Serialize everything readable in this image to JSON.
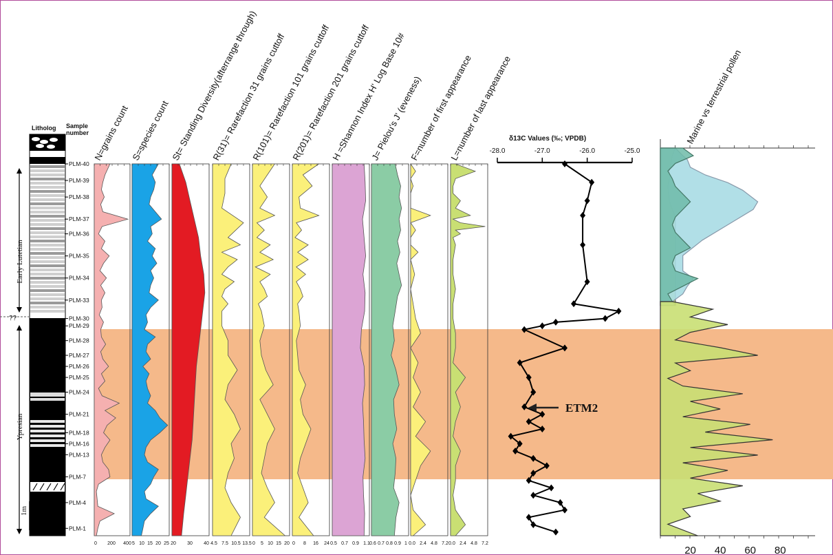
{
  "header": {
    "lithology": "Litholog",
    "sample": "Sample",
    "number": "number"
  },
  "samples": [
    "PLM-40",
    "PLM-39",
    "PLM-38",
    "PLM-37",
    "PLM-36",
    "PLM-35",
    "PLM-34",
    "PLM-33",
    "PLM-30",
    "PLM-29",
    "PLM-28",
    "PLM-27",
    "PLM-26",
    "PLM-25",
    "PLM-24",
    "PLM-21",
    "PLM-18",
    "PLM-16",
    "PLM-13",
    "PLM-7",
    "PLM-4",
    "PLM-1"
  ],
  "stages": {
    "upper": "Early Lutetian",
    "lower": "Ypresian",
    "boundary": "??"
  },
  "scale_label": "1m",
  "etm_label": "ETM2",
  "colors": {
    "band": "#f5b98a",
    "pink": "#f5b0b0",
    "blue": "#1aa3e6",
    "red": "#e31b23",
    "yellow": "#fbf07a",
    "violet": "#dca4d4",
    "green": "#8bcca5",
    "lime": "#c9df73",
    "teal": "#6fbba8",
    "lightblue": "#a9dbe4"
  },
  "chart_data": [
    {
      "type": "area",
      "title": "N=grains count",
      "ticks": [
        "0",
        "200",
        "400"
      ],
      "depth": [
        0,
        3,
        5,
        7,
        9,
        11,
        13,
        15,
        17,
        19,
        21,
        23,
        25,
        27,
        29,
        31,
        33,
        35,
        37,
        39,
        41,
        43,
        45,
        47,
        49,
        51,
        53,
        55,
        57,
        59,
        61,
        63,
        65,
        67,
        69,
        71,
        73,
        75,
        77,
        79,
        81,
        83,
        85,
        87,
        89,
        91,
        93,
        95,
        97,
        99,
        101
      ],
      "values": [
        220,
        150,
        120,
        100,
        140,
        90,
        120,
        470,
        110,
        60,
        150,
        100,
        210,
        130,
        80,
        170,
        90,
        150,
        100,
        110,
        70,
        130,
        90,
        100,
        160,
        90,
        120,
        200,
        100,
        150,
        60,
        110,
        350,
        150,
        300,
        180,
        130,
        220,
        150,
        100,
        120,
        200,
        220,
        60,
        30,
        40,
        50,
        280,
        80,
        50,
        30
      ]
    },
    {
      "type": "area",
      "title": "S=species count",
      "ticks": [
        "5",
        "10",
        "15",
        "20",
        "25"
      ],
      "depth": [
        0,
        3,
        5,
        7,
        9,
        11,
        13,
        15,
        17,
        19,
        21,
        23,
        25,
        27,
        29,
        31,
        33,
        35,
        37,
        39,
        41,
        43,
        45,
        47,
        49,
        51,
        53,
        55,
        57,
        59,
        61,
        63,
        65,
        67,
        69,
        71,
        73,
        75,
        77,
        79,
        81,
        83,
        85,
        87,
        89,
        91,
        93,
        95,
        97,
        99,
        101
      ],
      "values": [
        20,
        16,
        18,
        17,
        15,
        14,
        18,
        22,
        15,
        16,
        13,
        18,
        16,
        19,
        15,
        17,
        15,
        14,
        20,
        15,
        12,
        13,
        11,
        18,
        13,
        12,
        15,
        10,
        14,
        12,
        13,
        15,
        13,
        18,
        21,
        26,
        21,
        15,
        12,
        11,
        13,
        20,
        17,
        15,
        11,
        12,
        20,
        15,
        11,
        10,
        9
      ]
    },
    {
      "type": "area",
      "title": "St= Standing Diversity(afterrange through)",
      "ticks": [
        "20",
        "30",
        "40"
      ],
      "depth": [
        0,
        5,
        10,
        15,
        20,
        25,
        30,
        35,
        40,
        45,
        50,
        55,
        60,
        65,
        70,
        75,
        80,
        85,
        90,
        95,
        101
      ],
      "values": [
        22,
        28,
        32,
        36,
        40,
        42,
        45,
        46,
        44,
        42,
        40,
        38,
        37,
        36,
        35,
        34,
        32,
        30,
        28,
        26,
        24
      ]
    },
    {
      "type": "area",
      "title": "R(31)= Rarefaction 31 grains cuttoff",
      "ticks": [
        "4.5",
        "7.5",
        "10.5",
        "13.5"
      ],
      "depth": [
        0,
        4,
        8,
        12,
        16,
        20,
        22,
        24,
        26,
        28,
        30,
        32,
        34,
        36,
        38,
        40,
        44,
        48,
        52,
        56,
        60,
        64,
        68,
        72,
        76,
        80,
        84,
        88,
        92,
        96,
        101
      ],
      "values": [
        9,
        7,
        7,
        6,
        13,
        8,
        12,
        6,
        11,
        8,
        6,
        10,
        7,
        6,
        8,
        6,
        6,
        8,
        8,
        11,
        8,
        7,
        10,
        12,
        9,
        10,
        8,
        7,
        9,
        12,
        9
      ]
    },
    {
      "type": "area",
      "title": "R(101)= Rarefaction 101 grains cuttoff",
      "ticks": [
        "0",
        "5",
        "10",
        "15",
        "20"
      ],
      "depth": [
        0,
        3,
        6,
        9,
        12,
        14,
        16,
        18,
        20,
        22,
        24,
        26,
        28,
        30,
        32,
        34,
        36,
        38,
        40,
        44,
        48,
        52,
        56,
        60,
        64,
        68,
        72,
        76,
        80,
        84,
        88,
        92,
        96,
        101
      ],
      "values": [
        15,
        10,
        5,
        10,
        5,
        15,
        3,
        8,
        3,
        12,
        5,
        14,
        2,
        12,
        5,
        8,
        10,
        4,
        6,
        8,
        5,
        6,
        9,
        14,
        5,
        10,
        15,
        10,
        8,
        6,
        10,
        15,
        8,
        22
      ]
    },
    {
      "type": "area",
      "title": "R(201)= Rarefaction 201 grains cuttoff",
      "ticks": [
        "0",
        "8",
        "16",
        "24"
      ],
      "depth": [
        0,
        3,
        6,
        9,
        12,
        14,
        16,
        18,
        20,
        22,
        24,
        26,
        28,
        30,
        32,
        34,
        36,
        38,
        40,
        44,
        48,
        52,
        56,
        60,
        64,
        68,
        72,
        76,
        80,
        84,
        88,
        92,
        96,
        101
      ],
      "values": [
        20,
        8,
        15,
        5,
        6,
        20,
        3,
        7,
        2,
        12,
        4,
        12,
        3,
        10,
        3,
        6,
        8,
        4,
        5,
        6,
        3,
        4,
        5,
        10,
        6,
        8,
        14,
        10,
        6,
        4,
        8,
        12,
        5,
        16
      ]
    },
    {
      "type": "area",
      "title": "H =Shannon Index H' Log Base 10#",
      "ticks": [
        "0.5",
        "0.7",
        "0.9",
        "1.1"
      ],
      "depth": [
        0,
        5,
        10,
        15,
        20,
        25,
        30,
        35,
        40,
        45,
        50,
        55,
        60,
        65,
        70,
        75,
        80,
        85,
        90,
        95,
        101
      ],
      "values": [
        1.05,
        1.07,
        1.08,
        1.02,
        1.05,
        1.08,
        1.03,
        1.07,
        1.06,
        1.0,
        0.98,
        1.05,
        1.06,
        1.02,
        1.04,
        1.05,
        1.07,
        1.03,
        1.04,
        1.06,
        1.05
      ]
    },
    {
      "type": "area",
      "title": "J= Pielou's J' (eveness)",
      "ticks": [
        "0.6",
        "0.7",
        "0.8",
        "0.9",
        "1"
      ],
      "depth": [
        0,
        3,
        6,
        9,
        12,
        15,
        18,
        21,
        24,
        27,
        30,
        33,
        36,
        40,
        44,
        48,
        52,
        56,
        60,
        64,
        68,
        72,
        76,
        80,
        84,
        88,
        92,
        96,
        101
      ],
      "values": [
        0.85,
        0.88,
        0.92,
        0.9,
        0.93,
        0.9,
        0.92,
        0.88,
        0.91,
        0.87,
        0.9,
        0.93,
        0.88,
        0.85,
        0.82,
        0.84,
        0.8,
        0.86,
        0.9,
        0.83,
        0.84,
        0.87,
        0.82,
        0.86,
        0.85,
        0.83,
        0.9,
        0.86,
        0.84
      ]
    },
    {
      "type": "area",
      "title": "F=number of first appearance",
      "ticks": [
        "0.0",
        "2.4",
        "4.8",
        "7.2"
      ],
      "depth": [
        0,
        2,
        4,
        6,
        8,
        10,
        12,
        14,
        16,
        18,
        20,
        22,
        24,
        26,
        30,
        34,
        38,
        42,
        46,
        50,
        54,
        58,
        62,
        66,
        70,
        74,
        78,
        82,
        86,
        90,
        94,
        98,
        101
      ],
      "values": [
        0,
        1,
        0,
        0.5,
        0,
        0,
        0,
        4,
        0,
        1,
        0,
        0,
        1.5,
        0,
        0.8,
        0,
        0.5,
        1,
        2,
        0,
        1.5,
        0.5,
        2,
        0.5,
        3,
        1,
        4,
        2,
        1,
        0,
        0.5,
        3,
        0.5
      ]
    },
    {
      "type": "area",
      "title": "L=number of last appearance",
      "ticks": [
        "0.0",
        "2.4",
        "4.8",
        "7.2"
      ],
      "depth": [
        0,
        2,
        4,
        6,
        8,
        10,
        12,
        14,
        15,
        16,
        17,
        18,
        19,
        20,
        22,
        26,
        30,
        34,
        38,
        42,
        46,
        50,
        54,
        58,
        62,
        66,
        70,
        74,
        78,
        82,
        86,
        90,
        94,
        98,
        101
      ],
      "values": [
        1,
        5,
        1,
        0.5,
        0.5,
        2,
        1,
        4,
        0.5,
        2,
        7,
        1,
        2,
        0.5,
        1,
        0.5,
        0.5,
        1,
        0.5,
        0.5,
        1,
        1,
        0.5,
        3,
        1,
        2,
        1,
        0.5,
        2,
        1,
        1,
        0.5,
        1,
        3,
        1
      ]
    },
    {
      "type": "line",
      "title": "δ13C Values (‰; VPDB)",
      "xticks": [
        "-28.0",
        "-27.0",
        "-26.0",
        "-25.0"
      ],
      "xlim": [
        -28,
        -25
      ],
      "points": [
        [
          -26.5,
          0
        ],
        [
          -25.9,
          5
        ],
        [
          -26.0,
          10
        ],
        [
          -26.1,
          14
        ],
        [
          -26.1,
          22
        ],
        [
          -26.0,
          32
        ],
        [
          -26.3,
          38
        ],
        [
          -25.3,
          40
        ],
        [
          -25.6,
          42
        ],
        [
          -26.7,
          43
        ],
        [
          -27.0,
          44
        ],
        [
          -27.4,
          45
        ],
        [
          -26.5,
          50
        ],
        [
          -27.5,
          54
        ],
        [
          -27.3,
          58
        ],
        [
          -27.2,
          62
        ],
        [
          -27.4,
          66
        ],
        [
          -27.0,
          68
        ],
        [
          -27.3,
          70
        ],
        [
          -27.0,
          72
        ],
        [
          -27.7,
          74
        ],
        [
          -27.5,
          76
        ],
        [
          -27.6,
          78
        ],
        [
          -27.2,
          80
        ],
        [
          -26.9,
          82
        ],
        [
          -27.2,
          84
        ],
        [
          -27.3,
          86
        ],
        [
          -26.8,
          88
        ],
        [
          -27.2,
          90
        ],
        [
          -26.6,
          92
        ],
        [
          -26.5,
          94
        ],
        [
          -27.3,
          96
        ],
        [
          -27.2,
          98
        ],
        [
          -26.7,
          100
        ]
      ]
    },
    {
      "type": "area",
      "title": "Marine vs terrestrial pollen",
      "xticks": [
        "20",
        "40",
        "60",
        "80"
      ],
      "xlim": [
        0,
        90
      ],
      "series": [
        {
          "depth": [
            0,
            2,
            4,
            6,
            8,
            10,
            14,
            18,
            22,
            26,
            28,
            30,
            32,
            34,
            36,
            38,
            40,
            41
          ],
          "values": [
            10,
            8,
            7,
            6,
            6,
            5,
            6,
            10,
            10,
            10,
            10,
            10,
            10,
            10,
            10,
            10,
            10,
            10
          ]
        },
        {
          "depth": [
            0,
            2,
            3,
            5,
            7,
            9,
            11,
            14,
            16,
            20,
            24,
            28,
            32,
            34,
            36,
            38,
            40,
            41
          ],
          "values": [
            10,
            15,
            18,
            20,
            30,
            45,
            55,
            65,
            62,
            45,
            28,
            15,
            15,
            22,
            18,
            15,
            8,
            10
          ]
        },
        {
          "depth": [
            0,
            2,
            4,
            6,
            8,
            10,
            14,
            18,
            20,
            22,
            24,
            26,
            28,
            30,
            32,
            34,
            36,
            38,
            40
          ],
          "values": [
            15,
            22,
            10,
            5,
            8,
            10,
            20,
            10,
            8,
            10,
            15,
            20,
            10,
            8,
            10,
            25,
            15,
            5,
            8
          ]
        },
        {
          "depth": [
            40,
            42,
            44,
            46,
            48,
            50,
            52,
            54,
            56,
            58,
            60,
            62,
            64,
            66,
            68,
            70,
            72,
            74,
            76,
            78,
            80,
            82,
            84,
            86,
            88,
            90,
            92,
            94,
            96,
            98,
            101
          ],
          "values": [
            8,
            35,
            20,
            45,
            20,
            10,
            40,
            65,
            10,
            20,
            5,
            15,
            55,
            20,
            40,
            15,
            60,
            30,
            75,
            20,
            65,
            15,
            45,
            20,
            55,
            25,
            40,
            15,
            20,
            5,
            25
          ]
        }
      ]
    }
  ]
}
